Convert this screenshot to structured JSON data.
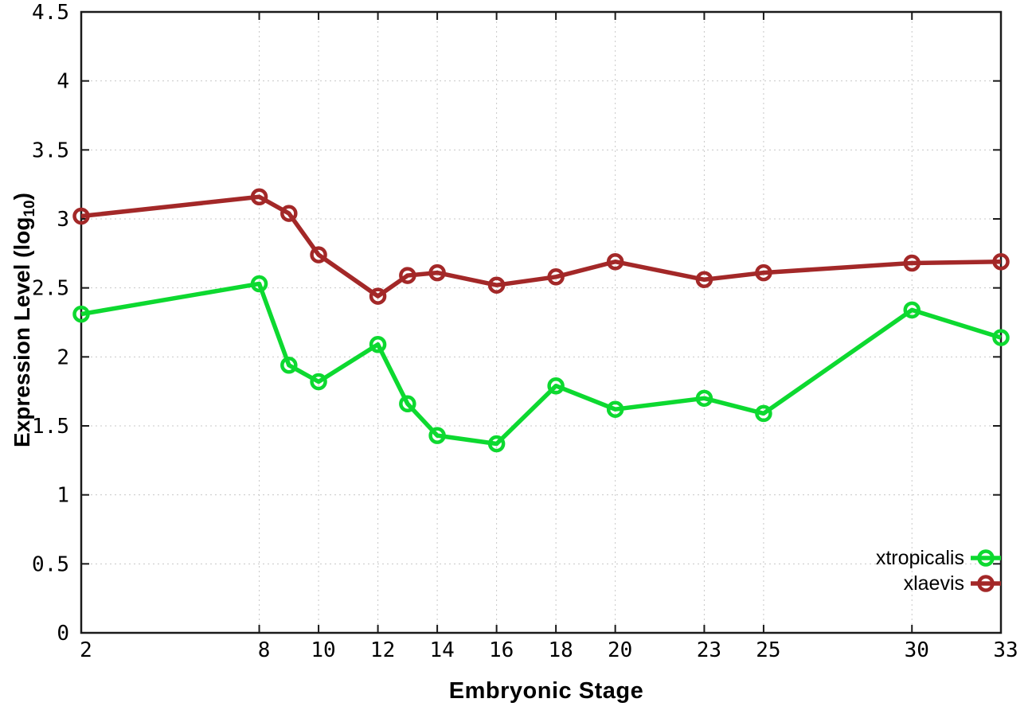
{
  "chart_data": {
    "type": "line",
    "title": "",
    "xlabel": "Embryonic Stage",
    "ylabel": "Expression Level (log10)",
    "ylabel_parts": {
      "prefix": "Expression Level (log",
      "sub": "10",
      "suffix": ")"
    },
    "xlim": [
      2,
      33
    ],
    "ylim": [
      0,
      4.5
    ],
    "grid": true,
    "legend_position": "bottom-right",
    "x_ticks": [
      2,
      8,
      10,
      12,
      14,
      16,
      18,
      20,
      23,
      25,
      30,
      33
    ],
    "x_tick_labels": [
      "2",
      "8",
      "10",
      "12",
      "14",
      "16",
      "18",
      "20",
      "23",
      "25",
      "30",
      "33"
    ],
    "y_ticks": [
      0,
      0.5,
      1,
      1.5,
      2,
      2.5,
      3,
      3.5,
      4,
      4.5
    ],
    "y_tick_labels": [
      "0",
      "0.5",
      "1",
      "1.5",
      "2",
      "2.5",
      "3",
      "3.5",
      "4",
      "4.5"
    ],
    "x": [
      2,
      8,
      9,
      10,
      12,
      13,
      14,
      16,
      18,
      20,
      23,
      25,
      30,
      33
    ],
    "series": [
      {
        "name": "xtropicalis",
        "color": "#0dd930",
        "values": [
          2.31,
          2.53,
          1.94,
          1.82,
          2.09,
          1.66,
          1.43,
          1.37,
          1.79,
          1.62,
          1.7,
          1.59,
          2.34,
          2.14
        ]
      },
      {
        "name": "xlaevis",
        "color": "#a32828",
        "values": [
          3.02,
          3.16,
          3.04,
          2.74,
          2.44,
          2.59,
          2.61,
          2.52,
          2.58,
          2.69,
          2.56,
          2.61,
          2.68,
          2.69
        ]
      }
    ],
    "style": {
      "grid_color": "#c8c8c8",
      "axis_color": "#1a1a1a",
      "tick_label_color": "#000000",
      "line_width": 5.5,
      "marker_radius": 8.5,
      "marker_stroke": 4.5
    }
  }
}
